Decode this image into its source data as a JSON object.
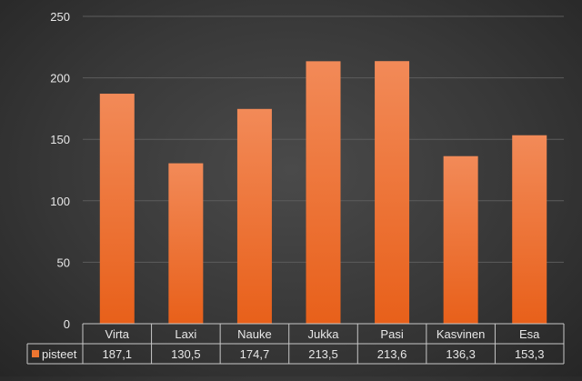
{
  "chart_data": {
    "type": "bar",
    "categories": [
      "Virta",
      "Laxi",
      "Nauke",
      "Jukka",
      "Pasi",
      "Kasvinen",
      "Esa"
    ],
    "series": [
      {
        "name": "pisteet",
        "values": [
          187.1,
          130.5,
          174.7,
          213.5,
          213.6,
          136.3,
          153.3
        ]
      }
    ],
    "value_labels": [
      "187,1",
      "130,5",
      "174,7",
      "213,5",
      "213,6",
      "136,3",
      "153,3"
    ],
    "ylim": [
      0,
      250
    ],
    "yticks": [
      0,
      50,
      100,
      150,
      200,
      250
    ],
    "grid": true,
    "data_table": true,
    "legend": "data-table",
    "colors": {
      "bar_top": "#f28a58",
      "bar_bottom": "#e8601a",
      "legend_key": "#ee7530",
      "text": "#e8e8e8",
      "grid": "#5c5c5c",
      "table_border": "#c8c8c8"
    }
  }
}
